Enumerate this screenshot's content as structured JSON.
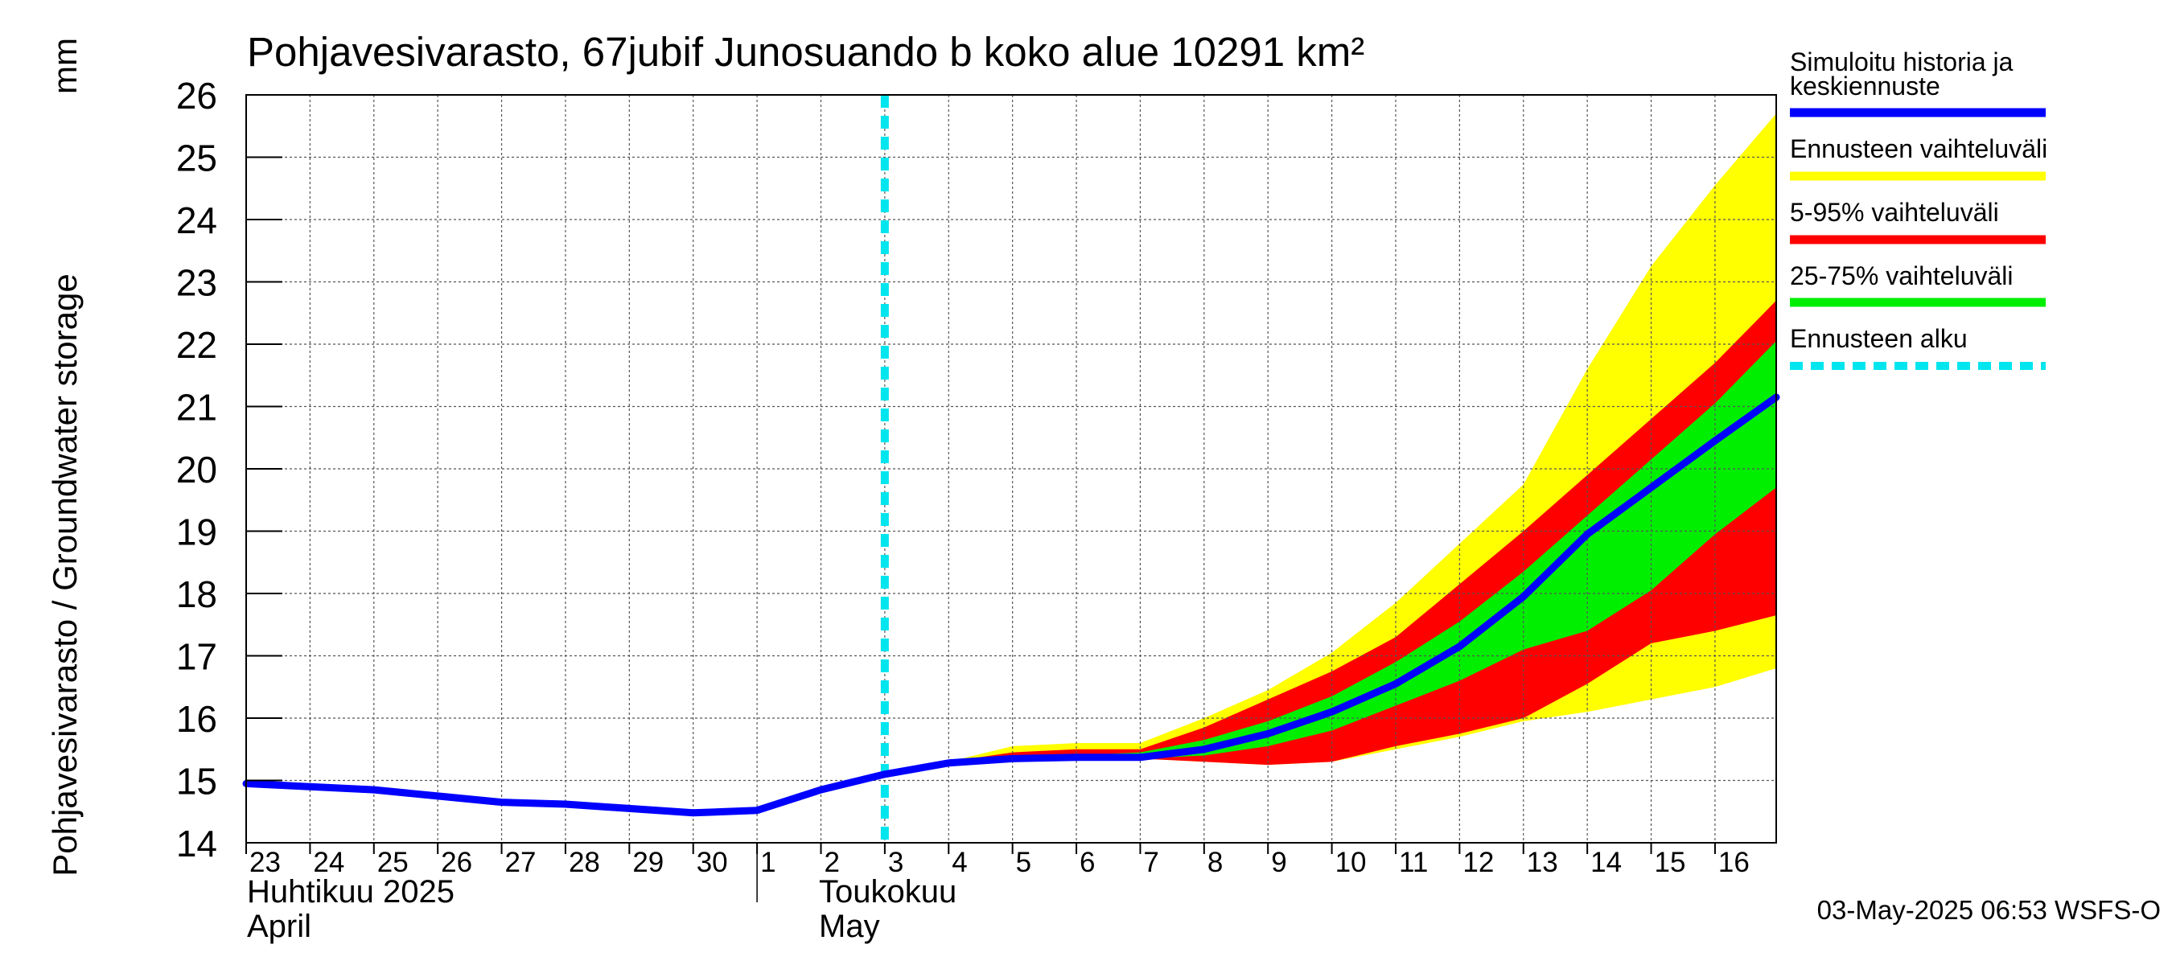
{
  "chart_data": {
    "type": "area",
    "title": "Pohjavesivarasto, 67jubif Junosuando b koko alue 10291 km²",
    "ylabel": "Pohjavesivarasto / Groundwater storage",
    "yunit": "mm",
    "ylim": [
      14,
      26
    ],
    "yticks": [
      14,
      15,
      16,
      17,
      18,
      19,
      20,
      21,
      22,
      23,
      24,
      25,
      26
    ],
    "xlim": [
      "2025-04-23",
      "2025-05-16T23:00"
    ],
    "xtick_labels": [
      "23",
      "24",
      "25",
      "26",
      "27",
      "28",
      "29",
      "30",
      "1",
      "2",
      "3",
      "4",
      "5",
      "6",
      "7",
      "8",
      "9",
      "10",
      "11",
      "12",
      "13",
      "14",
      "15",
      "16"
    ],
    "month_labels": [
      {
        "fi": "Huhtikuu  2025",
        "en": "April"
      },
      {
        "fi": "Toukokuu",
        "en": "May"
      }
    ],
    "grid": true,
    "forecast_start": "2025-05-03",
    "legend": [
      {
        "label": "Simuloitu historia ja keskiennuste",
        "color": "#0000ff"
      },
      {
        "label": "Ennusteen vaihteluväli",
        "color": "#ffff00"
      },
      {
        "label": "5-95% vaihteluväli",
        "color": "#ff0000"
      },
      {
        "label": "25-75% vaihteluväli",
        "color": "#00ee00"
      },
      {
        "label": "Ennusteen alku",
        "color": "#00e5ee"
      }
    ],
    "x": [
      "2025-05-04",
      "2025-05-05",
      "2025-05-06",
      "2025-05-07",
      "2025-05-08",
      "2025-05-09",
      "2025-05-10",
      "2025-05-11",
      "2025-05-12",
      "2025-05-13",
      "2025-05-14",
      "2025-05-15",
      "2025-05-16",
      "2025-05-16T23:00"
    ],
    "series": [
      {
        "name": "Ennusteen vaihteluväli",
        "upper": [
          15.3,
          15.55,
          15.6,
          15.6,
          16.0,
          16.45,
          17.05,
          17.85,
          18.8,
          19.75,
          21.6,
          23.25,
          24.55,
          25.7
        ],
        "lower": [
          15.3,
          15.35,
          15.35,
          15.35,
          15.3,
          15.25,
          15.3,
          15.5,
          15.7,
          15.95,
          16.1,
          16.3,
          16.5,
          16.8
        ]
      },
      {
        "name": "5-95% vaihteluväli",
        "upper": [
          15.3,
          15.45,
          15.5,
          15.5,
          15.85,
          16.3,
          16.75,
          17.3,
          18.15,
          19.0,
          19.9,
          20.8,
          21.7,
          22.7
        ],
        "lower": [
          15.3,
          15.35,
          15.35,
          15.35,
          15.3,
          15.25,
          15.3,
          15.55,
          15.75,
          16.0,
          16.55,
          17.2,
          17.4,
          17.65
        ]
      },
      {
        "name": "25-75% vaihteluväli",
        "upper": [
          15.3,
          15.4,
          15.4,
          15.45,
          15.65,
          15.95,
          16.35,
          16.9,
          17.55,
          18.35,
          19.25,
          20.15,
          21.05,
          22.05
        ],
        "lower": [
          15.3,
          15.35,
          15.35,
          15.35,
          15.4,
          15.55,
          15.8,
          16.2,
          16.6,
          17.1,
          17.4,
          18.05,
          18.95,
          19.7
        ]
      },
      {
        "name": "Simuloitu historia ja keskiennuste",
        "x": [
          "2025-04-23",
          "2025-04-24",
          "2025-04-25",
          "2025-04-26",
          "2025-04-27",
          "2025-04-28",
          "2025-04-29",
          "2025-04-30",
          "2025-05-01",
          "2025-05-02",
          "2025-05-03",
          "2025-05-04",
          "2025-05-05",
          "2025-05-06",
          "2025-05-07",
          "2025-05-08",
          "2025-05-09",
          "2025-05-10",
          "2025-05-11",
          "2025-05-12",
          "2025-05-13",
          "2025-05-14",
          "2025-05-15",
          "2025-05-16",
          "2025-05-16T23:00"
        ],
        "values": [
          14.95,
          14.9,
          14.85,
          14.75,
          14.65,
          14.62,
          14.55,
          14.48,
          14.52,
          14.85,
          15.1,
          15.28,
          15.35,
          15.37,
          15.37,
          15.5,
          15.75,
          16.1,
          16.55,
          17.15,
          17.95,
          18.95,
          19.7,
          20.45,
          21.15
        ]
      }
    ]
  },
  "footer": {
    "timestamp": "03-May-2025 06:53 WSFS-O"
  }
}
